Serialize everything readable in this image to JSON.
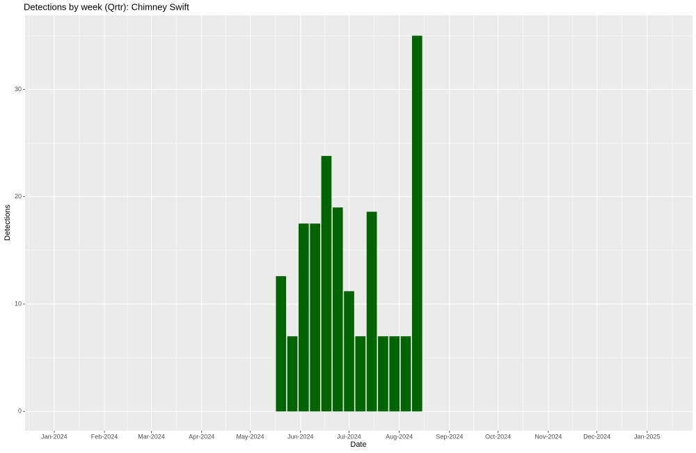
{
  "chart_data": {
    "type": "bar",
    "title": "Detections by week (Qrtr): Chimney Swift",
    "x_label": "Date",
    "y_label": "Detections",
    "x": [
      "2024-05-20",
      "2024-05-27",
      "2024-06-03",
      "2024-06-10",
      "2024-06-17",
      "2024-06-24",
      "2024-07-01",
      "2024-07-08",
      "2024-07-15",
      "2024-07-22",
      "2024-07-29",
      "2024-08-05",
      "2024-08-12"
    ],
    "values": [
      12.6,
      7,
      17.5,
      17.5,
      23.8,
      19,
      11.2,
      7,
      18.6,
      7,
      7,
      7,
      35
    ],
    "color": "#006400",
    "xlim": [
      "2023-12-14",
      "2025-01-29"
    ],
    "xticks": [
      {
        "value": "2024-01-01",
        "label": "Jan-2024"
      },
      {
        "value": "2024-02-01",
        "label": "Feb-2024"
      },
      {
        "value": "2024-03-01",
        "label": "Mar-2024"
      },
      {
        "value": "2024-04-01",
        "label": "Apr-2024"
      },
      {
        "value": "2024-05-01",
        "label": "May-2024"
      },
      {
        "value": "2024-06-01",
        "label": "Jun-2024"
      },
      {
        "value": "2024-07-01",
        "label": "Jul-2024"
      },
      {
        "value": "2024-08-01",
        "label": "Aug-2024"
      },
      {
        "value": "2024-09-01",
        "label": "Sep-2024"
      },
      {
        "value": "2024-10-01",
        "label": "Oct-2024"
      },
      {
        "value": "2024-11-01",
        "label": "Nov-2024"
      },
      {
        "value": "2024-12-01",
        "label": "Dec-2024"
      },
      {
        "value": "2025-01-01",
        "label": "Jan-2025"
      }
    ],
    "ylim": [
      -1.8,
      36.9
    ],
    "yticks": [
      0,
      10,
      20,
      30
    ],
    "grid": true
  }
}
